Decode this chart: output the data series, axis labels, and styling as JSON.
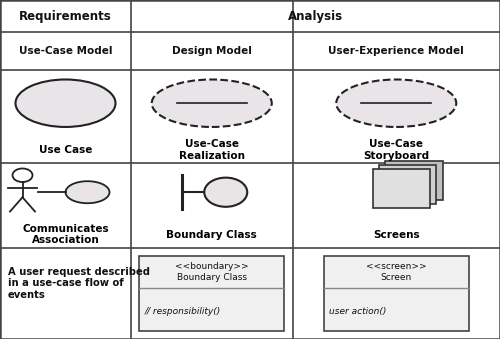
{
  "header1": "Requirements",
  "header2": "Analysis",
  "subheader1": "Use-Case Model",
  "subheader2": "Design Model",
  "subheader3": "User-Experience Model",
  "cell1_label": "Use Case",
  "cell2_label": "Use-Case\nRealization",
  "cell3_label": "Use-Case\nStoryboard",
  "cell4_label": "Communicates\nAssociation",
  "cell5_label": "Boundary Class",
  "cell6_label": "Screens",
  "cell7_text": "A user request described\nin a use-case flow of\nevents",
  "boundary_class_top": "<<boundary>>\nBoundary Class",
  "boundary_class_bottom": "// responsibility()",
  "screen_top": "<<screen>>\nScreen",
  "screen_bottom": "user action()",
  "bg_color": "#ffffff",
  "grid_color": "#444444",
  "ellipse_fill": "#e8e4e8",
  "ellipse_fill_small": "#dde8dd",
  "box_fill": "#e0e0e0",
  "c0": 0.0,
  "c1": 0.262,
  "c2": 0.585,
  "c3": 1.0,
  "r0t": 1.0,
  "r0b": 0.905,
  "r1b": 0.793,
  "r2b": 0.518,
  "r3b": 0.268,
  "r4b": 0.0
}
